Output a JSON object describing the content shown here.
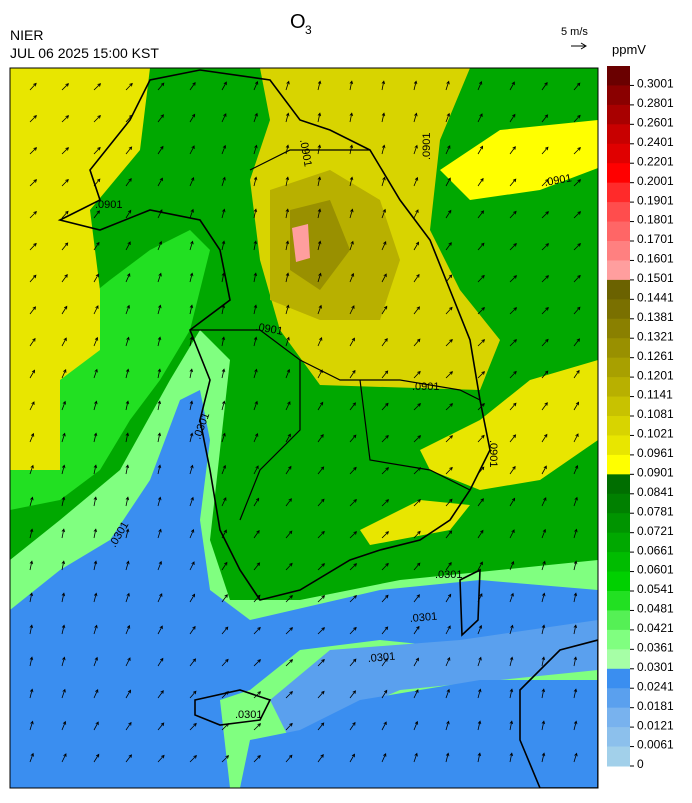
{
  "header": {
    "title": "O",
    "title_subscript": "3",
    "agency": "NIER",
    "timestamp": "JUL 06 2025 15:00 KST",
    "wind_scale": "5 m/s"
  },
  "colorbar": {
    "unit": "ppmV",
    "levels": [
      0.3001,
      0.2801,
      0.2601,
      0.2401,
      0.2201,
      0.2001,
      0.1901,
      0.1801,
      0.1701,
      0.1601,
      0.1501,
      0.1441,
      0.1381,
      0.1321,
      0.1261,
      0.1201,
      0.1141,
      0.1081,
      0.1021,
      0.0961,
      0.0901,
      0.0841,
      0.0781,
      0.0721,
      0.0661,
      0.0601,
      0.0541,
      0.0481,
      0.0421,
      0.0361,
      0.0301,
      0.0241,
      0.0181,
      0.0121,
      0.0061,
      0
    ],
    "colors": [
      "#6a0000",
      "#8a0000",
      "#a80000",
      "#c80000",
      "#e00000",
      "#ff0000",
      "#ff2a2a",
      "#ff4d4d",
      "#ff6666",
      "#ff8080",
      "#ff9e9e",
      "#6b6200",
      "#7a7000",
      "#8a8000",
      "#999000",
      "#a8a000",
      "#b8b000",
      "#c8c200",
      "#d8d400",
      "#e8e600",
      "#ffff00",
      "#006e00",
      "#008000",
      "#009400",
      "#00a800",
      "#00bc00",
      "#00d000",
      "#22e022",
      "#55f055",
      "#80ff80",
      "#a6ffa6",
      "#3a8ef0",
      "#5aa0ee",
      "#78b2ee",
      "#8cc0ec",
      "#a2d0ea"
    ]
  },
  "map": {
    "contour_labels": [
      ".0901",
      ".0901",
      ".0901",
      ".0901",
      ".0901",
      ".0901",
      ".0901",
      ".0301",
      ".0301",
      ".0301",
      ".0301",
      ".0301",
      ".0301"
    ]
  }
}
